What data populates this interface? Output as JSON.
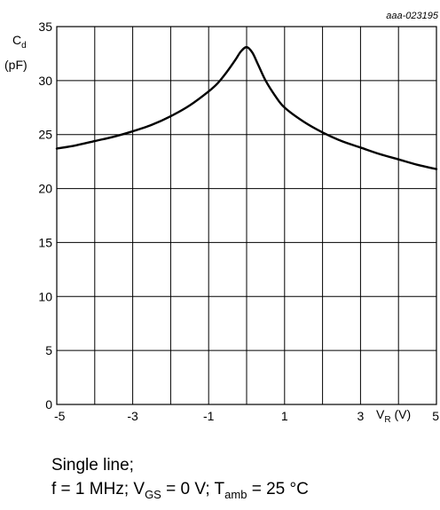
{
  "doc_id": "aaa-023195",
  "chart_data": {
    "type": "line",
    "ylabel_main": "C",
    "ylabel_sub": "d",
    "yunit": "(pF)",
    "xlabel_main": "V",
    "xlabel_sub": "R",
    "xunit": "(V)",
    "xlim": [
      -5,
      5
    ],
    "ylim": [
      0,
      35
    ],
    "xticks": [
      "-5",
      "-3",
      "-1",
      "1",
      "3",
      "5"
    ],
    "yticks": [
      "0",
      "5",
      "10",
      "15",
      "20",
      "25",
      "30",
      "35"
    ],
    "x_grid_step": 1,
    "y_grid_step": 5,
    "grid": true,
    "series": [
      {
        "x": [
          -5,
          -4.5,
          -4,
          -3.5,
          -3,
          -2.5,
          -2,
          -1.5,
          -1,
          -0.75,
          -0.5,
          -0.3,
          -0.15,
          0,
          0.15,
          0.3,
          0.5,
          0.75,
          1,
          1.5,
          2,
          2.5,
          3,
          3.5,
          4,
          4.5,
          5
        ],
        "y": [
          23.7,
          24.0,
          24.4,
          24.8,
          25.3,
          25.9,
          26.7,
          27.7,
          29.0,
          29.8,
          30.9,
          31.9,
          32.7,
          33.1,
          32.6,
          31.5,
          30.0,
          28.6,
          27.5,
          26.2,
          25.2,
          24.4,
          23.8,
          23.2,
          22.7,
          22.2,
          21.8
        ]
      }
    ]
  },
  "caption": {
    "line1": "Single line;",
    "line2_f": "f = 1 MHz; V",
    "line2_gs_sub": "GS",
    "line2_mid": " = 0 V; T",
    "line2_amb_sub": "amb",
    "line2_end": " = 25 °C"
  }
}
